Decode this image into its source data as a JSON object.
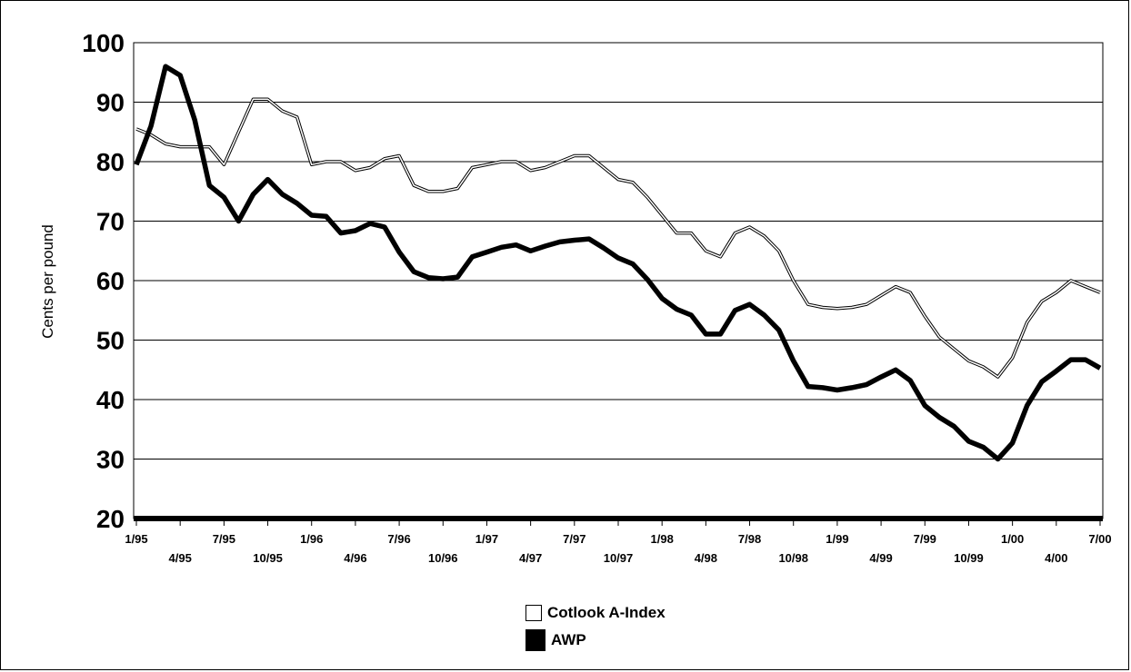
{
  "chart_data": {
    "type": "line",
    "title": "",
    "xlabel": "",
    "ylabel": "Cents per pound",
    "ylim": [
      20,
      100
    ],
    "yticks": [
      "20",
      "30",
      "40",
      "50",
      "60",
      "70",
      "80",
      "90",
      "100"
    ],
    "grid": true,
    "legend_position": "bottom-center",
    "x_tick_labels": [
      "1/95",
      "4/95",
      "7/95",
      "10/95",
      "1/96",
      "4/96",
      "7/96",
      "10/96",
      "1/97",
      "4/97",
      "7/97",
      "10/97",
      "1/98",
      "4/98",
      "7/98",
      "10/98",
      "1/99",
      "4/99",
      "7/99",
      "10/99",
      "1/00",
      "4/00",
      "7/00"
    ],
    "months": [
      "1/95",
      "2/95",
      "3/95",
      "4/95",
      "5/95",
      "6/95",
      "7/95",
      "8/95",
      "9/95",
      "10/95",
      "11/95",
      "12/95",
      "1/96",
      "2/96",
      "3/96",
      "4/96",
      "5/96",
      "6/96",
      "7/96",
      "8/96",
      "9/96",
      "10/96",
      "11/96",
      "12/96",
      "1/97",
      "2/97",
      "3/97",
      "4/97",
      "5/97",
      "6/97",
      "7/97",
      "8/97",
      "9/97",
      "10/97",
      "11/97",
      "12/97",
      "1/98",
      "2/98",
      "3/98",
      "4/98",
      "5/98",
      "6/98",
      "7/98",
      "8/98",
      "9/98",
      "10/98",
      "11/98",
      "12/98",
      "1/99",
      "2/99",
      "3/99",
      "4/99",
      "5/99",
      "6/99",
      "7/99",
      "8/99",
      "9/99",
      "10/99",
      "11/99",
      "12/99",
      "1/00",
      "2/00",
      "3/00",
      "4/00",
      "5/00",
      "6/00",
      "7/00"
    ],
    "series": [
      {
        "name": "Cotlook A-Index",
        "color": "#ffffff",
        "values": [
          85.5,
          84.5,
          83,
          82.5,
          82.5,
          82.5,
          79.5,
          85,
          90.5,
          90.5,
          88.5,
          87.5,
          79.5,
          80,
          80,
          78.5,
          79,
          80.5,
          81,
          76,
          75,
          75,
          75.5,
          79,
          79.5,
          80,
          80,
          78.5,
          79,
          80,
          81,
          81,
          79,
          77,
          76.5,
          74,
          71,
          68,
          68,
          65,
          64,
          68,
          69,
          67.5,
          65,
          60,
          56,
          55.5,
          55.3,
          55.5,
          56,
          57.5,
          59,
          58,
          54,
          50.5,
          48.5,
          46.5,
          45.5,
          43.8,
          47,
          53,
          56.5,
          58,
          60,
          59,
          58
        ]
      },
      {
        "name": "AWP",
        "color": "#000000",
        "values": [
          79.5,
          86,
          96,
          94.5,
          87,
          76,
          74,
          70,
          74.5,
          77,
          74.5,
          73,
          71,
          70.8,
          68,
          68.4,
          69.6,
          69,
          64.8,
          61.5,
          60.5,
          60.3,
          60.6,
          64,
          64.8,
          65.6,
          66,
          65,
          65.8,
          66.5,
          66.8,
          67,
          65.5,
          63.8,
          62.8,
          60.2,
          57,
          55.2,
          54.2,
          51,
          51,
          55,
          56,
          54.2,
          51.7,
          46.5,
          42.2,
          42,
          41.6,
          42,
          42.5,
          43.8,
          45,
          43.2,
          39,
          37,
          35.5,
          33,
          32,
          30,
          32.7,
          39,
          43,
          44.8,
          46.7,
          46.7,
          45.3
        ]
      }
    ]
  }
}
